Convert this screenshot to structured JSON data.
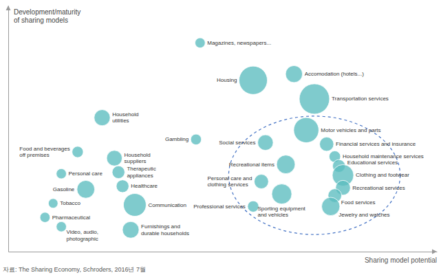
{
  "chart_data": {
    "type": "bubble",
    "y_label": "Development/maturity\nof sharing models",
    "x_label": "Sharing model potential",
    "source": "자료: The Sharing Economy, Schroders, 2016년 7월",
    "x": [
      5.2,
      6.5,
      7.5,
      8.0,
      7.8,
      6.8,
      8.3,
      8.5,
      7.3,
      8.6,
      8.7,
      6.7,
      8.7,
      7.2,
      8.5,
      6.5,
      8.4,
      5.1,
      2.8,
      2.2,
      3.1,
      1.8,
      3.2,
      2.4,
      3.3,
      1.6,
      1.4,
      3.6,
      1.8,
      3.5
    ],
    "series": [
      {
        "color": "#5bbcbf",
        "values": [
          9.0,
          7.8,
          8.0,
          7.2,
          6.2,
          5.8,
          5.75,
          5.35,
          5.1,
          5.05,
          4.75,
          4.55,
          4.35,
          4.15,
          4.1,
          3.75,
          3.75,
          5.9,
          6.6,
          5.5,
          5.3,
          4.8,
          4.85,
          4.3,
          4.4,
          3.85,
          3.4,
          3.8,
          3.1,
          3.0
        ],
        "sizes": [
          180,
          1400,
          500,
          1600,
          1100,
          420,
          350,
          230,
          600,
          280,
          800,
          360,
          380,
          700,
          320,
          220,
          580,
          200,
          450,
          220,
          420,
          180,
          280,
          550,
          280,
          160,
          180,
          900,
          180,
          480
        ],
        "labels": [
          "Magazines, newspapers...",
          "Housing",
          "Accomodation (hotels...)",
          "Transportation services",
          "Motor vehicles and parts",
          "Social services",
          "Financial services and insurance",
          "Household maintenance services",
          "Recreational items",
          "Educational services",
          "Clothing and footwear",
          "Personal care and\nclothing services",
          "Recreational services",
          "Sporting equipment\nand vehicles",
          "Food services",
          "Professional services",
          "Jewelry and watches",
          "Gambling",
          "Household\nutilities",
          "Food and beverages\noff premises",
          "Household\nsuppliers",
          "Personal care",
          "Therapeutic\nappliances",
          "Gasoline",
          "Healthcare",
          "Tobacco",
          "Pharmaceutical",
          "Communication",
          "Video, audio,\nphotographic",
          "Furnishings and\ndurable households"
        ]
      }
    ],
    "ellipse": {
      "cx": 8.0,
      "cy": 4.75,
      "width": 4.2,
      "height": 3.8,
      "color": "#4472c4",
      "line_style": "dashed"
    },
    "xlim": [
      0.5,
      11.0
    ],
    "ylim": [
      2.3,
      10.2
    ],
    "xticks": [],
    "yticks": [],
    "tick_labels": false,
    "grid": false
  }
}
